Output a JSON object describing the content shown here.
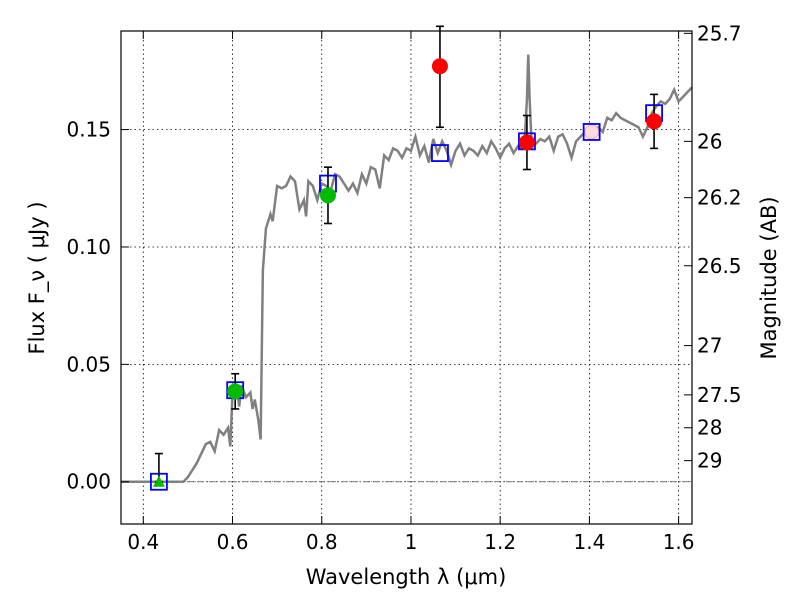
{
  "chart_data": {
    "type": "scatter",
    "xlabel": "Wavelength  λ (μm)",
    "ylabel": "Flux  F_ν  ( μJy )",
    "ylabel_right": "Magnitude (AB)",
    "xlim": [
      0.35,
      1.63
    ],
    "ylim": [
      -0.018,
      0.192
    ],
    "grid": true,
    "x_ticks": [
      {
        "value": 0.4,
        "label": "0.4"
      },
      {
        "value": 0.6,
        "label": "0.6"
      },
      {
        "value": 0.8,
        "label": "0.8"
      },
      {
        "value": 1.0,
        "label": "1"
      },
      {
        "value": 1.2,
        "label": "1.2"
      },
      {
        "value": 1.4,
        "label": "1.4"
      },
      {
        "value": 1.6,
        "label": "1.6"
      }
    ],
    "y_ticks": [
      {
        "value": 0.0,
        "label": "0.00"
      },
      {
        "value": 0.05,
        "label": "0.05"
      },
      {
        "value": 0.1,
        "label": "0.10"
      },
      {
        "value": 0.15,
        "label": "0.15"
      }
    ],
    "mag_ticks": [
      {
        "value": 0.191,
        "label": "25.7"
      },
      {
        "value": 0.145,
        "label": "26"
      },
      {
        "value": 0.121,
        "label": "26.2"
      },
      {
        "value": 0.092,
        "label": "26.5"
      },
      {
        "value": 0.058,
        "label": "27"
      },
      {
        "value": 0.037,
        "label": "27.5"
      },
      {
        "value": 0.023,
        "label": "28"
      },
      {
        "value": 0.009,
        "label": "29"
      }
    ],
    "colors": {
      "model": "#808080",
      "square": "#0000ff",
      "red": "#ff0000",
      "green": "#00bb00",
      "error": "#000000",
      "zero_line": "#555555"
    },
    "model_spectrum": [
      [
        0.35,
        0.0
      ],
      [
        0.49,
        0.0
      ],
      [
        0.5,
        0.002
      ],
      [
        0.52,
        0.008
      ],
      [
        0.54,
        0.016
      ],
      [
        0.55,
        0.017
      ],
      [
        0.56,
        0.013
      ],
      [
        0.57,
        0.022
      ],
      [
        0.58,
        0.02
      ],
      [
        0.59,
        0.023
      ],
      [
        0.595,
        0.015
      ],
      [
        0.6,
        0.038
      ],
      [
        0.61,
        0.04
      ],
      [
        0.615,
        0.032
      ],
      [
        0.62,
        0.041
      ],
      [
        0.63,
        0.036
      ],
      [
        0.64,
        0.038
      ],
      [
        0.645,
        0.031
      ],
      [
        0.65,
        0.035
      ],
      [
        0.658,
        0.026
      ],
      [
        0.663,
        0.018
      ],
      [
        0.668,
        0.09
      ],
      [
        0.675,
        0.108
      ],
      [
        0.685,
        0.114
      ],
      [
        0.69,
        0.111
      ],
      [
        0.7,
        0.126
      ],
      [
        0.71,
        0.125
      ],
      [
        0.72,
        0.126
      ],
      [
        0.73,
        0.13
      ],
      [
        0.74,
        0.128
      ],
      [
        0.75,
        0.116
      ],
      [
        0.76,
        0.12
      ],
      [
        0.765,
        0.113
      ],
      [
        0.77,
        0.128
      ],
      [
        0.78,
        0.126
      ],
      [
        0.79,
        0.12
      ],
      [
        0.8,
        0.127
      ],
      [
        0.81,
        0.126
      ],
      [
        0.82,
        0.124
      ],
      [
        0.83,
        0.131
      ],
      [
        0.84,
        0.13
      ],
      [
        0.85,
        0.127
      ],
      [
        0.86,
        0.124
      ],
      [
        0.87,
        0.127
      ],
      [
        0.88,
        0.123
      ],
      [
        0.89,
        0.131
      ],
      [
        0.9,
        0.127
      ],
      [
        0.91,
        0.134
      ],
      [
        0.92,
        0.133
      ],
      [
        0.93,
        0.125
      ],
      [
        0.94,
        0.139
      ],
      [
        0.95,
        0.137
      ],
      [
        0.96,
        0.142
      ],
      [
        0.97,
        0.141
      ],
      [
        0.98,
        0.138
      ],
      [
        0.99,
        0.142
      ],
      [
        1.0,
        0.141
      ],
      [
        1.01,
        0.147
      ],
      [
        1.02,
        0.139
      ],
      [
        1.03,
        0.143
      ],
      [
        1.04,
        0.136
      ],
      [
        1.05,
        0.146
      ],
      [
        1.06,
        0.14
      ],
      [
        1.07,
        0.145
      ],
      [
        1.08,
        0.141
      ],
      [
        1.09,
        0.135
      ],
      [
        1.1,
        0.141
      ],
      [
        1.11,
        0.144
      ],
      [
        1.12,
        0.139
      ],
      [
        1.13,
        0.142
      ],
      [
        1.14,
        0.141
      ],
      [
        1.15,
        0.139
      ],
      [
        1.16,
        0.143
      ],
      [
        1.17,
        0.14
      ],
      [
        1.18,
        0.145
      ],
      [
        1.19,
        0.142
      ],
      [
        1.2,
        0.138
      ],
      [
        1.21,
        0.142
      ],
      [
        1.22,
        0.144
      ],
      [
        1.23,
        0.14
      ],
      [
        1.24,
        0.143
      ],
      [
        1.25,
        0.142
      ],
      [
        1.255,
        0.146
      ],
      [
        1.26,
        0.163
      ],
      [
        1.263,
        0.182
      ],
      [
        1.266,
        0.163
      ],
      [
        1.27,
        0.146
      ],
      [
        1.28,
        0.144
      ],
      [
        1.29,
        0.146
      ],
      [
        1.3,
        0.145
      ],
      [
        1.31,
        0.147
      ],
      [
        1.32,
        0.141
      ],
      [
        1.33,
        0.147
      ],
      [
        1.34,
        0.148
      ],
      [
        1.35,
        0.144
      ],
      [
        1.36,
        0.138
      ],
      [
        1.37,
        0.145
      ],
      [
        1.38,
        0.147
      ],
      [
        1.39,
        0.149
      ],
      [
        1.4,
        0.147
      ],
      [
        1.41,
        0.149
      ],
      [
        1.42,
        0.151
      ],
      [
        1.43,
        0.149
      ],
      [
        1.44,
        0.155
      ],
      [
        1.45,
        0.154
      ],
      [
        1.46,
        0.157
      ],
      [
        1.47,
        0.155
      ],
      [
        1.48,
        0.154
      ],
      [
        1.49,
        0.153
      ],
      [
        1.5,
        0.152
      ],
      [
        1.51,
        0.151
      ],
      [
        1.52,
        0.147
      ],
      [
        1.53,
        0.151
      ],
      [
        1.54,
        0.157
      ],
      [
        1.55,
        0.16
      ],
      [
        1.56,
        0.162
      ],
      [
        1.57,
        0.161
      ],
      [
        1.58,
        0.163
      ],
      [
        1.59,
        0.167
      ],
      [
        1.6,
        0.162
      ],
      [
        1.61,
        0.164
      ],
      [
        1.62,
        0.166
      ],
      [
        1.63,
        0.168
      ]
    ],
    "model_points": [
      [
        0.435,
        0.0
      ],
      [
        0.606,
        0.039
      ],
      [
        0.814,
        0.127
      ],
      [
        1.065,
        0.14
      ],
      [
        1.26,
        0.145
      ],
      [
        1.405,
        0.149
      ],
      [
        1.545,
        0.157
      ]
    ],
    "red_points": [
      {
        "x": 1.065,
        "y": 0.177,
        "err_low": 0.026,
        "err_high": 0.017
      },
      {
        "x": 1.26,
        "y": 0.1445,
        "err_low": 0.0115,
        "err_high": 0.0115
      },
      {
        "x": 1.545,
        "y": 0.1535,
        "err_low": 0.0115,
        "err_high": 0.0115
      }
    ],
    "green_points": [
      {
        "x": 0.606,
        "y": 0.0385,
        "err_low": 0.0075,
        "err_high": 0.0075
      },
      {
        "x": 0.814,
        "y": 0.122,
        "err_low": 0.012,
        "err_high": 0.012
      }
    ],
    "upper_limit_points": [
      {
        "x": 0.435,
        "y": 0.0,
        "err_high": 0.012
      }
    ],
    "faint_point": {
      "x": 1.405,
      "y": 0.149
    }
  }
}
